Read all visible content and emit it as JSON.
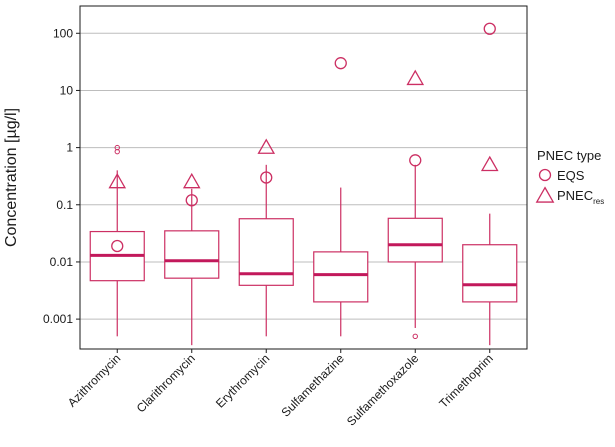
{
  "chart_data": {
    "type": "boxplot",
    "title": "",
    "xlabel": "",
    "ylabel": "Concentration [µg/l]",
    "yscale": "log",
    "ylim": [
      0.0003,
      300
    ],
    "yticks": [
      0.001,
      0.01,
      0.1,
      1,
      10,
      100
    ],
    "ytick_labels": [
      "0.001",
      "0.01",
      "0.1",
      "1",
      "10",
      "100"
    ],
    "grid": "horizontal",
    "legend_position": "right",
    "legend": {
      "title": "PNEC type",
      "items": [
        {
          "marker": "circle",
          "label": "EQS",
          "sub": ""
        },
        {
          "marker": "triangle",
          "label": "PNEC",
          "sub": "res"
        }
      ]
    },
    "colors": {
      "box": "#cc2f63",
      "median": "#c2185b",
      "grid": "#bdbdbd",
      "axis": "#1a1a1a"
    },
    "categories": [
      "Azithromycin",
      "Clarithromycin",
      "Erythromycin",
      "Sulfamethazine",
      "Sulfamethoxazole",
      "Trimethoprim"
    ],
    "boxes": [
      {
        "whisker_low": 0.0005,
        "q1": 0.0047,
        "median": 0.013,
        "q3": 0.034,
        "whisker_high": 0.4,
        "outliers": [
          0.85,
          1.0
        ]
      },
      {
        "whisker_low": 0.00035,
        "q1": 0.0052,
        "median": 0.0105,
        "q3": 0.035,
        "whisker_high": 0.19,
        "outliers": []
      },
      {
        "whisker_low": 0.0005,
        "q1": 0.0039,
        "median": 0.0062,
        "q3": 0.057,
        "whisker_high": 0.5,
        "outliers": []
      },
      {
        "whisker_low": 0.0005,
        "q1": 0.002,
        "median": 0.006,
        "q3": 0.015,
        "whisker_high": 0.2,
        "outliers": []
      },
      {
        "whisker_low": 0.0007,
        "q1": 0.01,
        "median": 0.02,
        "q3": 0.058,
        "whisker_high": 0.5,
        "outliers": [
          0.0005
        ]
      },
      {
        "whisker_low": 0.00035,
        "q1": 0.002,
        "median": 0.004,
        "q3": 0.02,
        "whisker_high": 0.07,
        "outliers": []
      }
    ],
    "eqs": [
      0.019,
      0.12,
      0.3,
      30,
      0.6,
      120
    ],
    "pnec_res": [
      0.25,
      0.25,
      1.0,
      null,
      16,
      0.5
    ]
  }
}
